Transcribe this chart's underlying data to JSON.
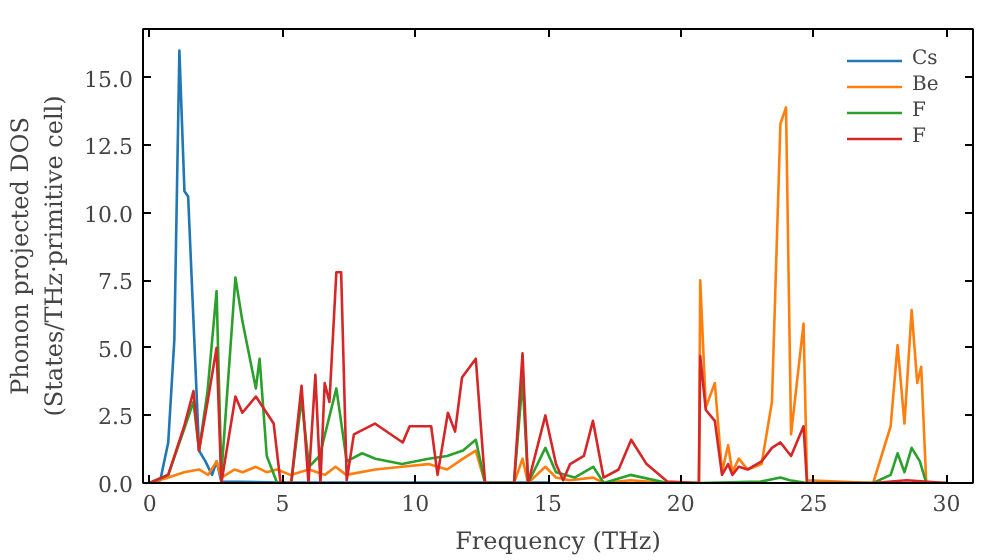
{
  "chart_data": {
    "type": "line",
    "xlabel": "Frequency (THz)",
    "ylabel": "Phonon projected DOS\n(States/THz·primitive cell)",
    "xlim": [
      -0.25,
      31
    ],
    "ylim": [
      0,
      16.8
    ],
    "xticks": [
      0,
      5,
      10,
      15,
      20,
      25,
      30
    ],
    "yticks": [
      {
        "value": 0,
        "label": "0.0"
      },
      {
        "value": 2.5,
        "label": "2.5"
      },
      {
        "value": 5,
        "label": "5.0"
      },
      {
        "value": 7.5,
        "label": "7.5"
      },
      {
        "value": 10,
        "label": "10.0"
      },
      {
        "value": 12.5,
        "label": "12.5"
      },
      {
        "value": 15,
        "label": "15.0"
      }
    ],
    "legend": "top right",
    "grid": false,
    "series": [
      {
        "name": "Cs",
        "color": "#1f77b4",
        "x": [
          0,
          0.4,
          0.7,
          0.93,
          1.12,
          1.31,
          1.45,
          1.86,
          2.1,
          2.35,
          2.52,
          2.7,
          5,
          10,
          15
        ],
        "values": [
          0,
          0.1,
          1.5,
          5.3,
          16.0,
          10.8,
          10.6,
          1.2,
          0.8,
          0.3,
          0.8,
          0.05,
          0.02,
          0.02,
          0.02
        ]
      },
      {
        "name": "Be",
        "color": "#ff7f0e",
        "x": [
          0,
          0.7,
          1.3,
          1.86,
          2.2,
          2.52,
          2.7,
          3.2,
          3.5,
          4.0,
          4.4,
          4.8,
          5.3,
          6.0,
          6.6,
          7.0,
          7.4,
          8.5,
          9.5,
          10.5,
          11.2,
          11.8,
          12.28,
          12.63,
          13.72,
          14.04,
          14.25,
          14.9,
          15.3,
          15.8,
          16.7,
          17.1,
          18.1,
          19.5,
          20.68,
          20.73,
          20.94,
          21.28,
          21.55,
          21.78,
          21.94,
          22.18,
          22.52,
          23.04,
          23.43,
          23.75,
          23.96,
          24.15,
          24.62,
          24.75,
          27.24,
          27.9,
          28.16,
          28.42,
          28.69,
          28.9,
          29.05,
          29.24,
          30
        ],
        "values": [
          0,
          0.2,
          0.4,
          0.5,
          0.3,
          0.8,
          0.2,
          0.5,
          0.4,
          0.6,
          0.4,
          0.5,
          0.3,
          0.5,
          0.3,
          0.6,
          0.3,
          0.5,
          0.6,
          0.7,
          0.5,
          0.9,
          1.2,
          0,
          0,
          0.9,
          0,
          0.6,
          0.2,
          0.1,
          0.2,
          0,
          0.1,
          0,
          0,
          7.5,
          2.8,
          3.7,
          0.4,
          1.4,
          0.4,
          0.9,
          0.5,
          0.7,
          3.0,
          13.3,
          13.9,
          1.8,
          5.9,
          0.1,
          0,
          2.1,
          5.1,
          2.2,
          6.4,
          3.7,
          4.3,
          0,
          0
        ]
      },
      {
        "name": "F",
        "color": "#2ca02c",
        "x": [
          0,
          0.7,
          1.3,
          1.65,
          1.86,
          2.18,
          2.52,
          2.7,
          3.23,
          3.49,
          4.0,
          4.14,
          4.41,
          4.8,
          5.33,
          5.72,
          6.0,
          6.4,
          7.03,
          7.42,
          8.0,
          8.5,
          9.5,
          10.5,
          11.2,
          11.8,
          12.28,
          12.63,
          13.72,
          14.04,
          14.25,
          14.9,
          15.3,
          16.0,
          16.7,
          17.1,
          18.1,
          19.5,
          20.68,
          23.0,
          23.75,
          24.1,
          24.75,
          27.24,
          27.9,
          28.16,
          28.42,
          28.69,
          29.0,
          29.24,
          30
        ],
        "values": [
          0,
          0.3,
          2.0,
          3.0,
          1.2,
          3.4,
          7.1,
          0.3,
          7.6,
          6.0,
          3.5,
          4.6,
          1.0,
          0,
          0,
          3.1,
          0.6,
          1.0,
          3.5,
          0.8,
          1.1,
          0.9,
          0.7,
          0.9,
          1.0,
          1.2,
          1.6,
          0,
          0,
          3.8,
          0,
          1.3,
          0.4,
          0.2,
          0.6,
          0,
          0.3,
          0,
          0,
          0.05,
          0.2,
          0.1,
          0,
          0,
          0.3,
          1.1,
          0.4,
          1.3,
          0.8,
          0,
          0
        ]
      },
      {
        "name": "F",
        "color": "#d62728",
        "x": [
          0,
          0.7,
          1.3,
          1.65,
          1.86,
          2.18,
          2.52,
          2.7,
          3.23,
          3.49,
          4.0,
          4.67,
          4.93,
          5.33,
          5.72,
          5.98,
          6.24,
          6.43,
          6.59,
          6.77,
          7.03,
          7.21,
          7.42,
          7.69,
          8.48,
          9.53,
          9.79,
          10.6,
          10.84,
          11.23,
          11.5,
          11.76,
          12.28,
          12.63,
          13.72,
          14.04,
          14.25,
          14.9,
          15.3,
          15.57,
          15.83,
          16.35,
          16.69,
          17.09,
          17.66,
          18.13,
          18.71,
          19.5,
          20.68,
          20.73,
          20.94,
          21.28,
          21.55,
          21.78,
          21.94,
          22.18,
          22.52,
          23.04,
          23.43,
          23.75,
          24.15,
          24.62,
          24.75,
          27.24,
          28.5,
          30
        ],
        "values": [
          0,
          0.3,
          2.1,
          3.4,
          1.2,
          3.0,
          5.0,
          0,
          3.2,
          2.6,
          3.2,
          2.2,
          0,
          0,
          3.6,
          0,
          4.0,
          0,
          3.7,
          3.0,
          7.8,
          7.8,
          0.1,
          1.8,
          2.2,
          1.5,
          2.1,
          2.1,
          0.3,
          2.6,
          1.9,
          3.9,
          4.6,
          0,
          0,
          4.8,
          0,
          2.5,
          0.7,
          0.1,
          0.7,
          1.0,
          2.3,
          0.2,
          0.5,
          1.6,
          0.7,
          0.05,
          0,
          4.7,
          2.7,
          2.3,
          0.3,
          0.7,
          0.3,
          0.6,
          0.5,
          0.8,
          1.3,
          1.5,
          1.0,
          2.1,
          0,
          0,
          0.1,
          0
        ]
      }
    ]
  }
}
